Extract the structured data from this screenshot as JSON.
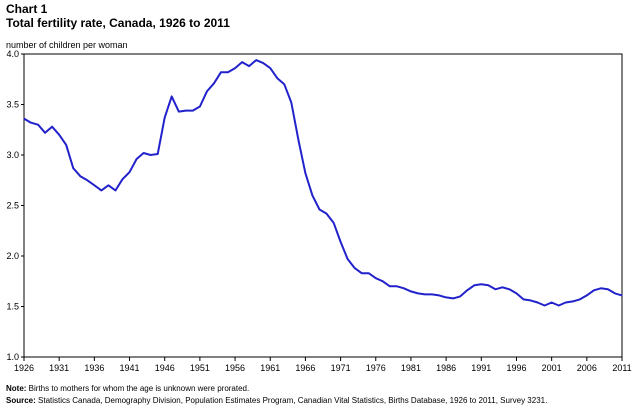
{
  "header": {
    "chart_number": "Chart 1",
    "title": "Total fertility rate, Canada, 1926 to 2011"
  },
  "footer": {
    "note_label": "Note:",
    "note_text": " Births to mothers for whom the age is unknown were prorated.",
    "source_label": "Source:",
    "source_text": " Statistics Canada, Demography Division, Population Estimates Program, Canadian Vital Statistics, Births Database, 1926 to 2011, Survey 3231."
  },
  "colors": {
    "line": "#2222cc",
    "axis": "#000000"
  },
  "chart_data": {
    "type": "line",
    "title": "Total fertility rate, Canada, 1926 to 2011",
    "ylabel": "number of children per woman",
    "xlabel": "",
    "xlim": [
      1926,
      2011
    ],
    "ylim": [
      1.0,
      4.0
    ],
    "x_ticks": [
      1926,
      1931,
      1936,
      1941,
      1946,
      1951,
      1956,
      1961,
      1966,
      1971,
      1976,
      1981,
      1986,
      1991,
      1996,
      2001,
      2006,
      2011
    ],
    "y_ticks": [
      "1.0",
      "1.5",
      "2.0",
      "2.5",
      "3.0",
      "3.5",
      "4.0"
    ],
    "grid": false,
    "legend": "none",
    "series": [
      {
        "x": [
          1926,
          1927,
          1928,
          1929,
          1930,
          1931,
          1932,
          1933,
          1934,
          1935,
          1936,
          1937,
          1938,
          1939,
          1940,
          1941,
          1942,
          1943,
          1944,
          1945,
          1946,
          1947,
          1948,
          1949,
          1950,
          1951,
          1952,
          1953,
          1954,
          1955,
          1956,
          1957,
          1958,
          1959,
          1960,
          1961,
          1962,
          1963,
          1964,
          1965,
          1966,
          1967,
          1968,
          1969,
          1970,
          1971,
          1972,
          1973,
          1974,
          1975,
          1976,
          1977,
          1978,
          1979,
          1980,
          1981,
          1982,
          1983,
          1984,
          1985,
          1986,
          1987,
          1988,
          1989,
          1990,
          1991,
          1992,
          1993,
          1994,
          1995,
          1996,
          1997,
          1998,
          1999,
          2000,
          2001,
          2002,
          2003,
          2004,
          2005,
          2006,
          2007,
          2008,
          2009,
          2010,
          2011
        ],
        "values": [
          3.36,
          3.32,
          3.3,
          3.22,
          3.28,
          3.2,
          3.1,
          2.87,
          2.79,
          2.75,
          2.7,
          2.65,
          2.7,
          2.65,
          2.76,
          2.83,
          2.96,
          3.02,
          3.0,
          3.01,
          3.37,
          3.58,
          3.43,
          3.44,
          3.44,
          3.48,
          3.63,
          3.71,
          3.82,
          3.82,
          3.86,
          3.92,
          3.88,
          3.94,
          3.91,
          3.86,
          3.76,
          3.7,
          3.52,
          3.15,
          2.82,
          2.6,
          2.46,
          2.42,
          2.33,
          2.14,
          1.97,
          1.88,
          1.83,
          1.83,
          1.78,
          1.75,
          1.7,
          1.7,
          1.68,
          1.65,
          1.63,
          1.62,
          1.62,
          1.61,
          1.59,
          1.58,
          1.6,
          1.66,
          1.71,
          1.72,
          1.71,
          1.67,
          1.69,
          1.67,
          1.63,
          1.57,
          1.56,
          1.54,
          1.51,
          1.54,
          1.51,
          1.54,
          1.55,
          1.57,
          1.61,
          1.66,
          1.68,
          1.67,
          1.63,
          1.61
        ]
      }
    ]
  }
}
